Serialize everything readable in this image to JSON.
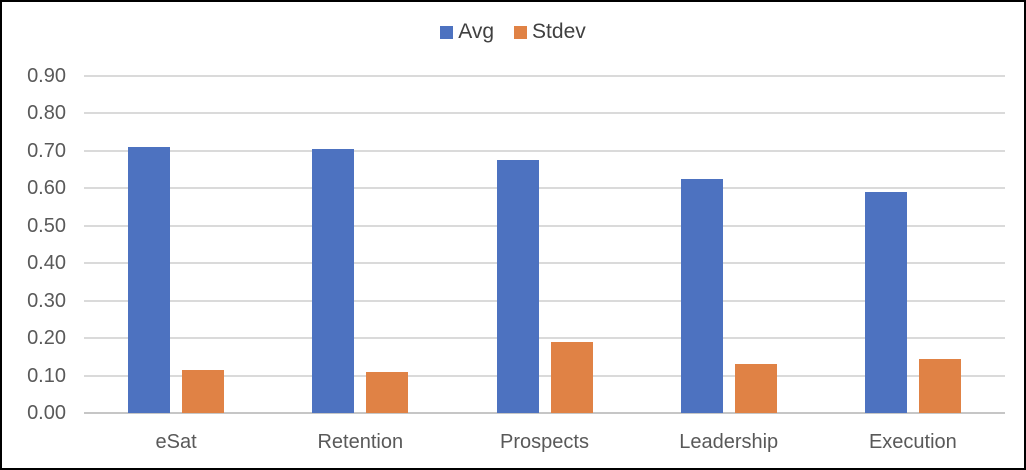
{
  "chart_data": {
    "type": "bar",
    "title": "",
    "xlabel": "",
    "ylabel": "",
    "categories": [
      "eSat",
      "Retention",
      "Prospects",
      "Leadership",
      "Execution"
    ],
    "series": [
      {
        "name": "Avg",
        "color": "#4D72C0",
        "values": [
          0.71,
          0.705,
          0.675,
          0.625,
          0.59
        ]
      },
      {
        "name": "Stdev",
        "color": "#E08245",
        "values": [
          0.115,
          0.11,
          0.19,
          0.13,
          0.145
        ]
      }
    ],
    "ylim": [
      0,
      0.9
    ],
    "ytick_step": 0.1,
    "ytick_labels": [
      "0.00",
      "0.10",
      "0.20",
      "0.30",
      "0.40",
      "0.50",
      "0.60",
      "0.70",
      "0.80",
      "0.90"
    ],
    "grid": true,
    "legend_position": "top-center"
  },
  "colors": {
    "gridline": "#DADADA",
    "axis_line": "#C6C6C6",
    "tick_text": "#595959",
    "legend_text": "#404040",
    "border": "#000000",
    "background": "#FFFFFF"
  }
}
